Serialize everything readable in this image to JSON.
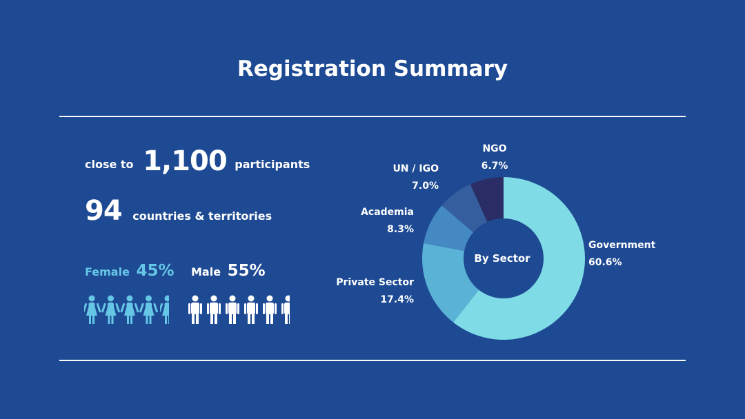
{
  "title": "Registration Summary",
  "stats": {
    "participants_prefix": "close to",
    "participants_value": "1,100",
    "participants_suffix": "participants",
    "countries_value": "94",
    "countries_suffix": "countries & territories"
  },
  "gender": {
    "female_label": "Female",
    "female_pct": "45%",
    "male_label": "Male",
    "male_pct": "55%",
    "female_icons": 4.5,
    "male_icons": 5.5,
    "female_color": "#66c6e6",
    "male_color": "#ffffff"
  },
  "colors": {
    "background": "#1e4a94",
    "rule": "#ffffff",
    "text": "#ffffff"
  },
  "chart_data": {
    "type": "pie",
    "title": "By Sector",
    "donut": true,
    "categories": [
      "Government",
      "Private Sector",
      "Academia",
      "UN / IGO",
      "NGO"
    ],
    "values": [
      60.6,
      17.4,
      8.3,
      7.0,
      6.7
    ],
    "value_labels": [
      "60.6%",
      "17.4%",
      "8.3%",
      "7.0%",
      "6.7%"
    ],
    "colors": [
      "#7fdce6",
      "#5ab2d6",
      "#4489c2",
      "#355e9e",
      "#2b2e66"
    ],
    "legend": "none"
  }
}
